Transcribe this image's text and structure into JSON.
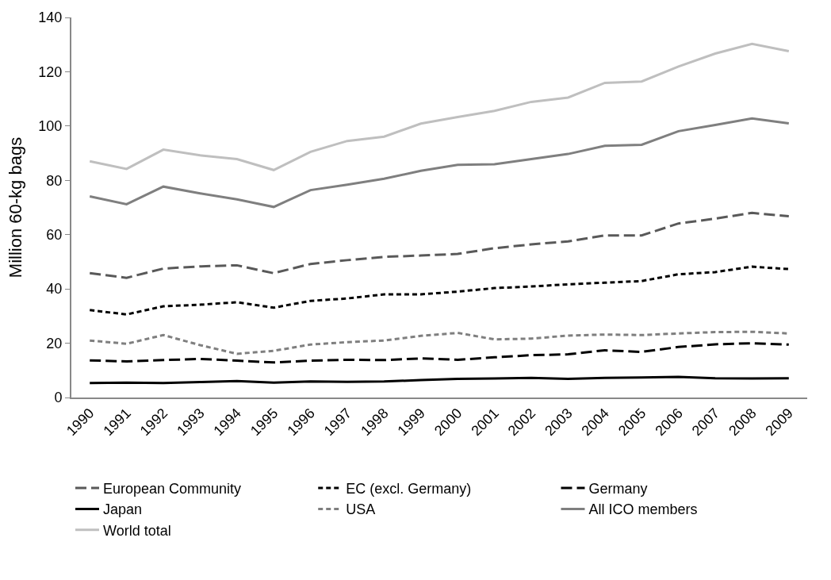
{
  "chart_data": {
    "type": "line",
    "ylabel": "Million 60-kg bags",
    "categories": [
      "1990",
      "1991",
      "1992",
      "1993",
      "1994",
      "1995",
      "1996",
      "1997",
      "1998",
      "1999",
      "2000",
      "2001",
      "2002",
      "2003",
      "2004",
      "2005",
      "2006",
      "2007",
      "2008",
      "2009"
    ],
    "ylim": [
      0,
      140
    ],
    "yticks": [
      0,
      20,
      40,
      60,
      80,
      100,
      120,
      140
    ],
    "grid": false,
    "legend": "bottom",
    "marker": "none",
    "series": [
      {
        "name": "European Community",
        "color": "#595959",
        "line_style": "dashed",
        "values": [
          45.8,
          44.1,
          47.5,
          48.3,
          48.7,
          45.8,
          49.2,
          50.6,
          51.8,
          52.3,
          52.9,
          55.0,
          56.4,
          57.5,
          59.7,
          59.7,
          64.1,
          65.9,
          68.0,
          66.8
        ]
      },
      {
        "name": "EC (excl. Germany)",
        "color": "#000000",
        "line_style": "dotted",
        "values": [
          32.2,
          30.6,
          33.6,
          34.2,
          35.1,
          33.1,
          35.6,
          36.5,
          38.0,
          38.0,
          39.0,
          40.3,
          40.9,
          41.7,
          42.3,
          42.9,
          45.4,
          46.2,
          48.2,
          47.3
        ]
      },
      {
        "name": "Germany",
        "color": "#000000",
        "line_style": "dashed",
        "values": [
          13.7,
          13.3,
          13.8,
          14.2,
          13.6,
          12.9,
          13.6,
          13.9,
          13.8,
          14.4,
          13.9,
          14.8,
          15.6,
          15.9,
          17.4,
          16.8,
          18.6,
          19.6,
          20.0,
          19.5
        ]
      },
      {
        "name": "Japan",
        "color": "#000000",
        "line_style": "solid",
        "values": [
          5.3,
          5.5,
          5.3,
          5.7,
          6.1,
          5.5,
          5.9,
          5.8,
          5.9,
          6.4,
          6.9,
          7.0,
          7.2,
          6.9,
          7.2,
          7.4,
          7.6,
          7.1,
          7.0,
          7.1
        ]
      },
      {
        "name": "USA",
        "color": "#7f7f7f",
        "line_style": "dotted",
        "values": [
          21.0,
          19.8,
          23.0,
          19.3,
          16.1,
          17.2,
          19.5,
          20.4,
          21.0,
          22.7,
          23.8,
          21.4,
          21.7,
          22.8,
          23.2,
          23.0,
          23.6,
          24.1,
          24.2,
          23.6
        ]
      },
      {
        "name": "All ICO members",
        "color": "#7f7f7f",
        "line_style": "solid",
        "values": [
          74.1,
          71.2,
          77.7,
          75.2,
          73.0,
          70.2,
          76.4,
          78.4,
          80.6,
          83.5,
          85.7,
          85.9,
          87.8,
          89.7,
          92.7,
          93.1,
          98.1,
          100.4,
          102.8,
          101.0
        ]
      },
      {
        "name": "World total",
        "color": "#bfbfbf",
        "line_style": "solid",
        "values": [
          87.0,
          84.2,
          91.3,
          89.2,
          87.8,
          83.8,
          90.5,
          94.5,
          96.1,
          100.9,
          103.3,
          105.6,
          108.9,
          110.5,
          115.9,
          116.4,
          121.9,
          126.7,
          130.3,
          127.6
        ]
      }
    ]
  }
}
